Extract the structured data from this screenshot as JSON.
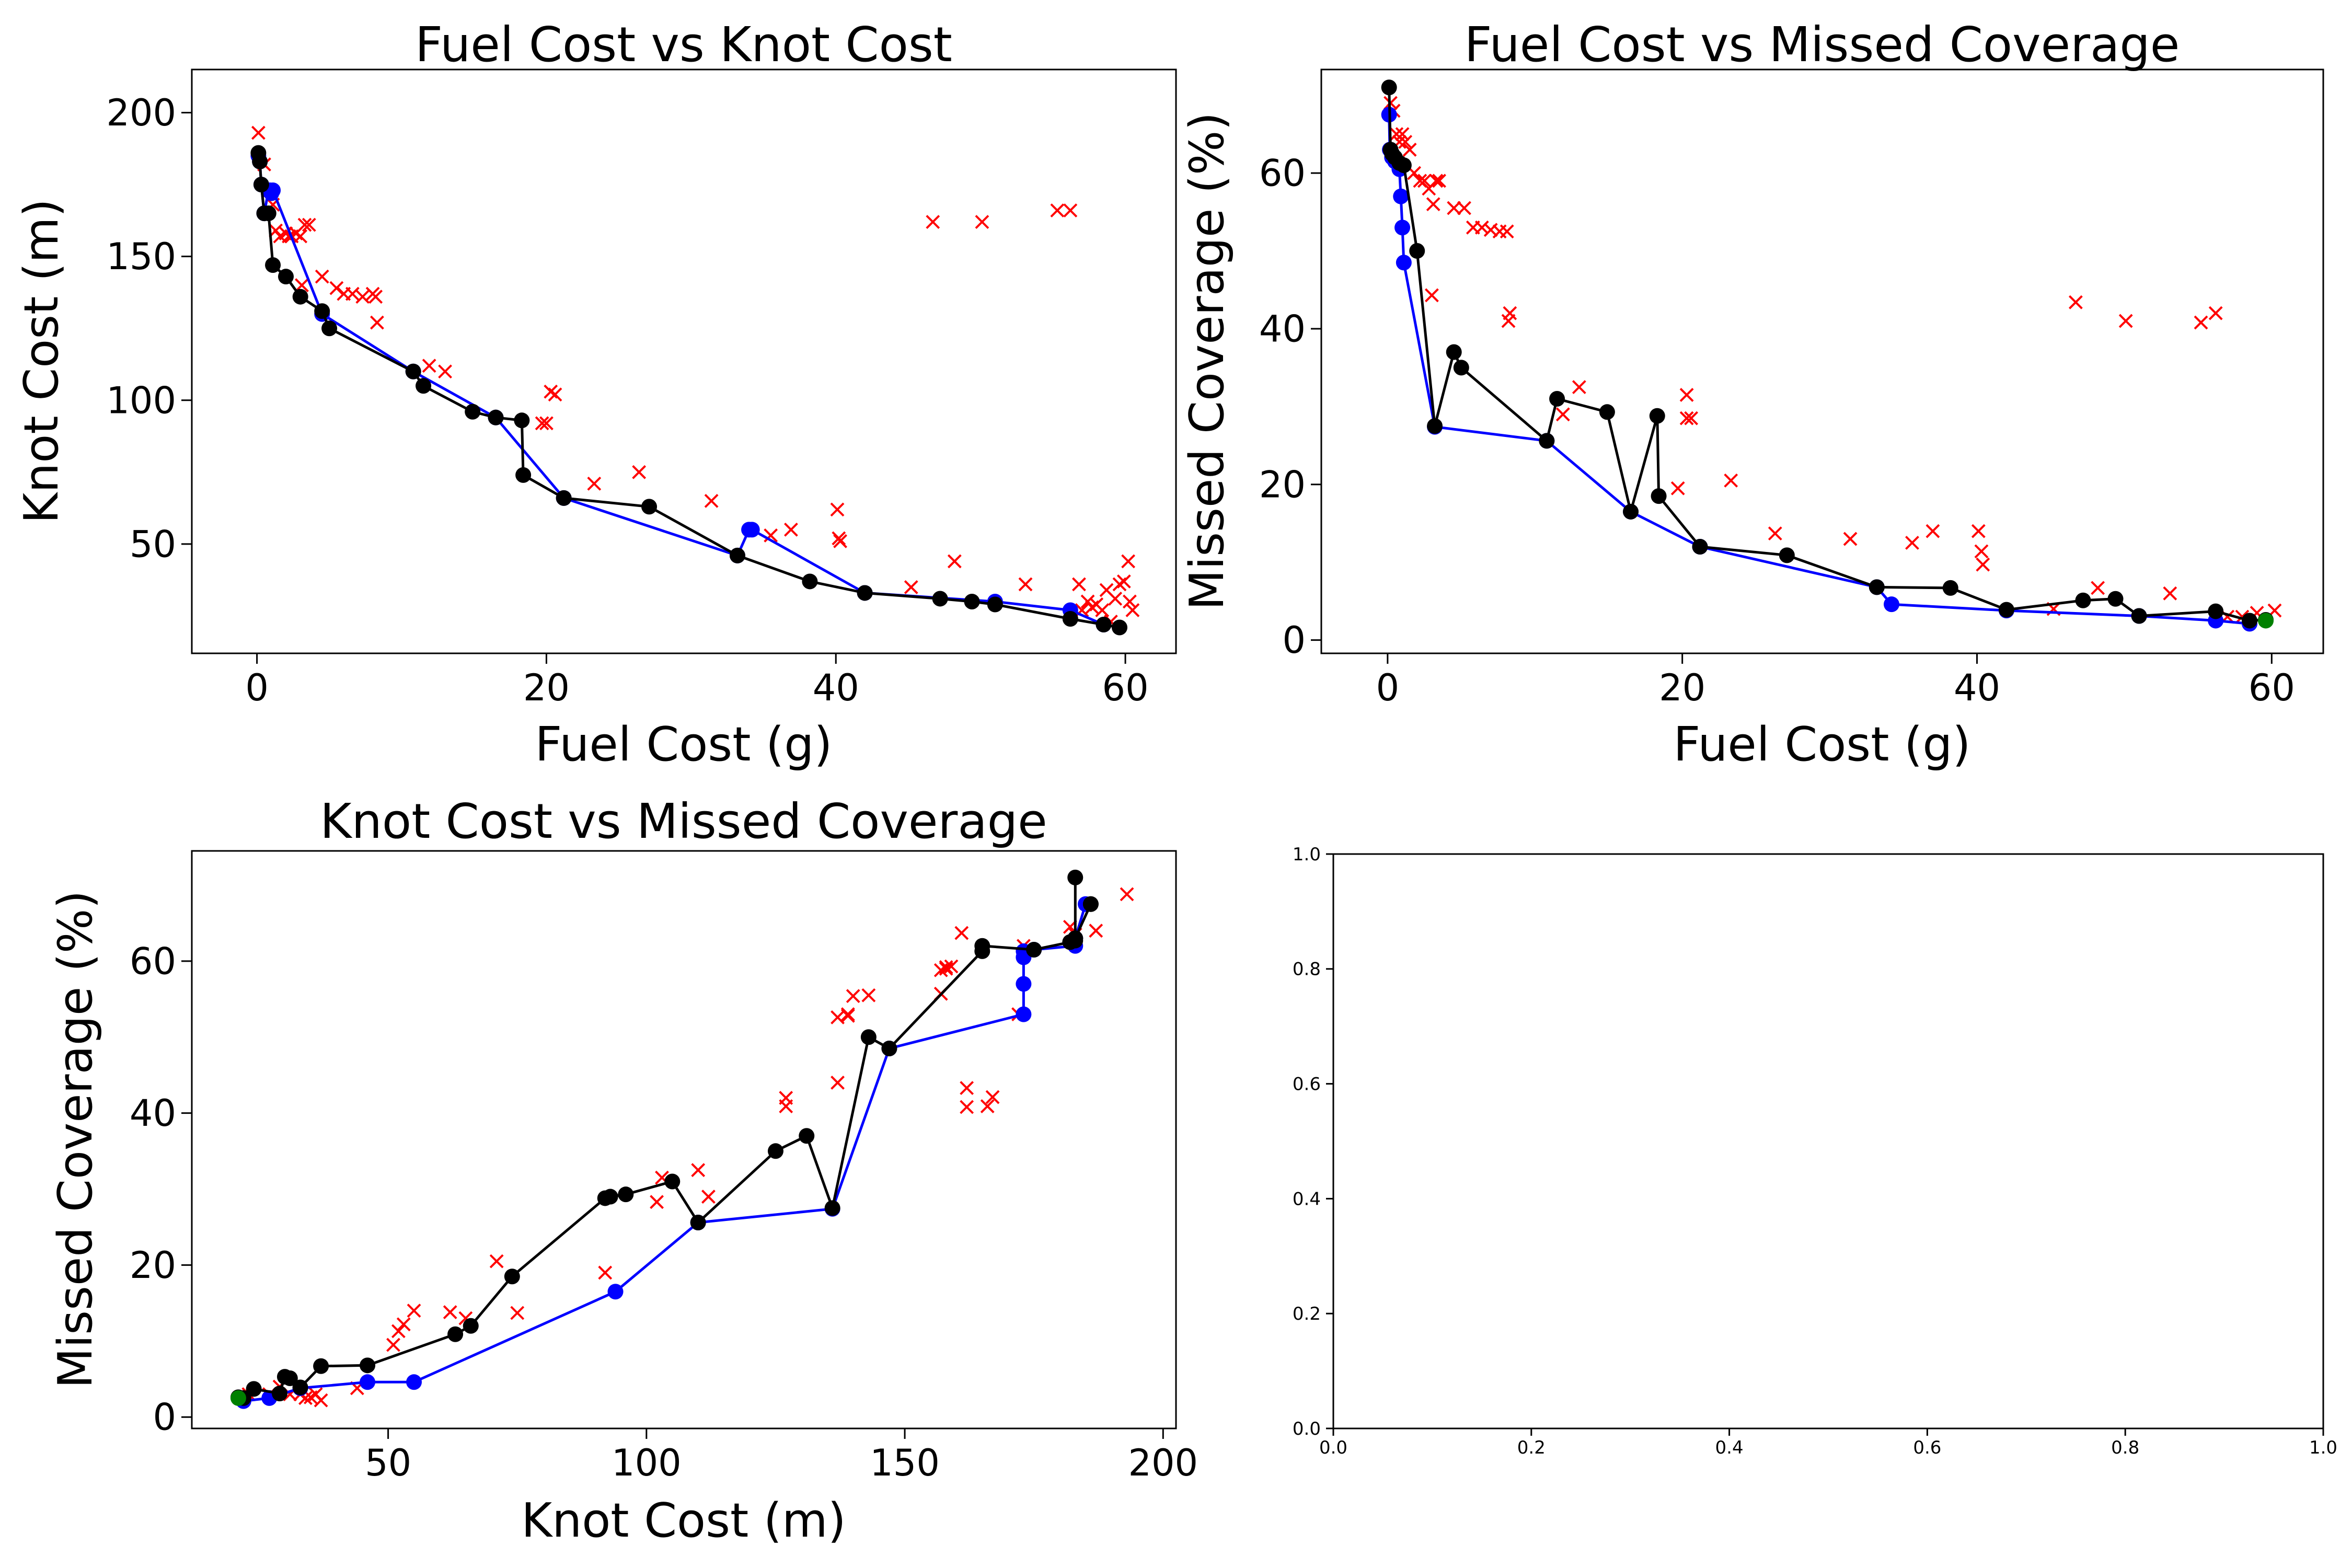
{
  "chart_data": [
    {
      "type": "scatter",
      "title": "Fuel Cost vs Knot Cost",
      "xlabel": "Fuel Cost (g)",
      "ylabel": "Knot Cost (m)",
      "xlim": [
        -4.5,
        63.5
      ],
      "ylim": [
        12,
        215
      ],
      "xticks": [
        0,
        20,
        40,
        60
      ],
      "yticks": [
        50,
        100,
        150,
        200
      ],
      "xtick_labels": [
        "0",
        "20",
        "40",
        "60"
      ],
      "ytick_labels": [
        "50",
        "100",
        "150",
        "200"
      ],
      "grid": false,
      "series": [
        {
          "marker": "x",
          "color": "#ff0000",
          "line": false,
          "x": [
            0.1,
            0.5,
            0.9,
            1.1,
            1.3,
            1.6,
            2.0,
            2.2,
            2.4,
            2.7,
            3.0,
            3.3,
            3.6,
            3.1,
            4.5,
            5.5,
            6.0,
            6.6,
            7.3,
            8.0,
            8.2,
            8.3,
            11.9,
            13.0,
            19.7,
            20.0,
            20.3,
            20.6,
            23.3,
            26.4,
            31.4,
            35.5,
            36.9,
            40.1,
            40.2,
            40.3,
            45.2,
            46.7,
            48.2,
            50.1,
            53.1,
            55.3,
            56.2,
            56.8,
            57.0,
            57.4,
            57.7,
            58.0,
            58.4,
            58.7,
            59.0,
            59.3,
            59.6,
            59.9,
            60.2,
            60.3,
            60.5
          ],
          "y": [
            193,
            182,
            173,
            168,
            159,
            157,
            158,
            157,
            157,
            158,
            157,
            161,
            161,
            140,
            143,
            139,
            137,
            137,
            136,
            137,
            136,
            127,
            112,
            110,
            92,
            92,
            103,
            102,
            71,
            75,
            65,
            53,
            55,
            62,
            52,
            51,
            35,
            162,
            44,
            162,
            36,
            166,
            166,
            36,
            27,
            30,
            28,
            29,
            27,
            34,
            23,
            31,
            36,
            37,
            44,
            30,
            27
          ]
        },
        {
          "marker": "o",
          "color": "#0000ff",
          "line": true,
          "x": [
            0.1,
            0.2,
            0.3,
            0.5,
            0.8,
            0.9,
            1.0,
            1.1,
            4.5,
            10.8,
            16.5,
            21.2,
            33.2,
            34.0,
            34.2,
            42.0,
            51.0,
            56.2,
            58.5
          ],
          "y": [
            185,
            183,
            175,
            165,
            173,
            173,
            172,
            173,
            130,
            110,
            94,
            66,
            46,
            55,
            55,
            33,
            30,
            27,
            22
          ]
        },
        {
          "marker": "o",
          "color": "#000000",
          "line": true,
          "x": [
            0.1,
            0.2,
            0.3,
            0.5,
            0.8,
            1.1,
            2.0,
            3.0,
            4.5,
            5.0,
            10.8,
            11.5,
            14.9,
            16.5,
            18.3,
            18.4,
            21.2,
            27.1,
            33.2,
            38.2,
            42.0,
            47.2,
            49.4,
            51.0,
            56.2,
            58.5,
            59.6
          ],
          "y": [
            186,
            183,
            175,
            165,
            165,
            147,
            143,
            136,
            131,
            125,
            110,
            105,
            96,
            94,
            93,
            74,
            66,
            63,
            46,
            37,
            33,
            31,
            30,
            29,
            24,
            22,
            21
          ]
        }
      ]
    },
    {
      "type": "scatter",
      "title": "Fuel Cost vs Missed Coverage",
      "xlabel": "Fuel Cost (g)",
      "ylabel": "Missed Coverage (%)",
      "xlim": [
        -4.5,
        63.5
      ],
      "ylim": [
        -1.7,
        73.3
      ],
      "xticks": [
        0,
        20,
        40,
        60
      ],
      "yticks": [
        0,
        20,
        40,
        60
      ],
      "xtick_labels": [
        "0",
        "20",
        "40",
        "60"
      ],
      "ytick_labels": [
        "0",
        "20",
        "40",
        "60"
      ],
      "grid": false,
      "series": [
        {
          "marker": "x",
          "color": "#ff0000",
          "line": false,
          "x": [
            0.2,
            0.4,
            0.6,
            0.8,
            1.0,
            1.2,
            1.5,
            1.8,
            2.2,
            2.5,
            2.8,
            3.1,
            3.3,
            3.5,
            4.5,
            5.2,
            5.8,
            6.4,
            7.0,
            7.6,
            8.1,
            8.3,
            8.2,
            3.0,
            11.9,
            13.0,
            19.7,
            20.3,
            20.6,
            20.3,
            23.3,
            26.3,
            31.4,
            35.6,
            37.0,
            40.1,
            40.3,
            40.4,
            45.2,
            46.7,
            48.2,
            50.1,
            53.1,
            55.2,
            56.2,
            57.0,
            58.0,
            59.0,
            60.2
          ],
          "y": [
            69,
            68,
            65,
            64,
            65,
            64,
            63,
            60,
            59,
            59,
            58,
            56,
            59,
            59,
            55.5,
            55.5,
            53,
            53,
            52.7,
            52.5,
            52.5,
            42,
            41,
            44.3,
            29,
            32.5,
            19.5,
            28.5,
            28.5,
            31.5,
            20.5,
            13.7,
            13,
            12.5,
            14,
            14,
            11.4,
            9.7,
            4,
            43.4,
            6.7,
            41,
            6,
            40.8,
            42,
            3,
            3,
            3.5,
            3.8
          ]
        },
        {
          "marker": "o",
          "color": "#0000ff",
          "line": true,
          "x": [
            0.1,
            0.15,
            0.3,
            0.5,
            0.8,
            0.9,
            1.0,
            1.1,
            3.2,
            10.8,
            16.5,
            21.2,
            33.2,
            34.2,
            42.0,
            51.0,
            56.2,
            58.5
          ],
          "y": [
            67.5,
            63,
            62,
            61.5,
            60.5,
            57,
            53,
            48.5,
            27.4,
            25.6,
            16.5,
            12,
            6.8,
            4.6,
            3.8,
            3.1,
            2.5,
            2.1
          ]
        },
        {
          "marker": "o",
          "color": "#000000",
          "line": true,
          "x": [
            0.1,
            0.2,
            0.3,
            0.5,
            0.8,
            1.1,
            2.0,
            3.2,
            4.5,
            5.0,
            10.8,
            11.5,
            14.9,
            16.5,
            18.3,
            18.4,
            21.2,
            27.1,
            33.2,
            38.2,
            42.0,
            47.2,
            49.4,
            51.0,
            56.2,
            58.5,
            59.6
          ],
          "y": [
            71,
            63,
            62.5,
            62,
            61.3,
            61,
            50,
            27.5,
            37,
            35,
            25.6,
            31,
            29.3,
            16.5,
            28.8,
            18.5,
            12,
            10.9,
            6.8,
            6.7,
            3.9,
            5.1,
            5.3,
            3.1,
            3.7,
            2.5,
            2.6
          ]
        },
        {
          "marker": "o",
          "color": "#008000",
          "line": false,
          "x": [
            59.6
          ],
          "y": [
            2.5
          ]
        }
      ]
    },
    {
      "type": "scatter",
      "title": "Knot Cost vs Missed Coverage",
      "xlabel": "Knot Cost (m)",
      "ylabel": "Missed Coverage (%)",
      "xlim": [
        12,
        202.5
      ],
      "ylim": [
        -1.5,
        74.5
      ],
      "xticks": [
        50,
        100,
        150,
        200
      ],
      "yticks": [
        0,
        20,
        40,
        60
      ],
      "xtick_labels": [
        "50",
        "100",
        "150",
        "200"
      ],
      "ytick_labels": [
        "0",
        "20",
        "40",
        "60"
      ],
      "grid": false,
      "series": [
        {
          "marker": "x",
          "color": "#ff0000",
          "line": false,
          "x": [
            23,
            27,
            29,
            31,
            33,
            34,
            35,
            36,
            37,
            44,
            51,
            52,
            53,
            55,
            62,
            65,
            71,
            75,
            92,
            102,
            103,
            110,
            112,
            127,
            127,
            137,
            137,
            139,
            139,
            140,
            143,
            157,
            157,
            158,
            158,
            159,
            161,
            162,
            162,
            166,
            167,
            172,
            173,
            182,
            183,
            187,
            193
          ],
          "y": [
            3,
            3,
            4,
            3,
            3,
            2.5,
            2.6,
            3,
            2.2,
            3.8,
            9.5,
            11.3,
            12.2,
            14,
            13.8,
            13,
            20.5,
            13.7,
            19,
            28.3,
            31.5,
            32.5,
            29,
            40.9,
            42,
            44,
            52.6,
            52.8,
            53,
            55.4,
            55.5,
            58.8,
            55.7,
            59,
            59.2,
            59.3,
            63.7,
            43.3,
            40.8,
            40.9,
            42.1,
            53,
            62,
            64.5,
            63.5,
            64,
            68.8
          ]
        },
        {
          "marker": "o",
          "color": "#0000ff",
          "line": true,
          "x": [
            22,
            27,
            33,
            46,
            55,
            94,
            110,
            136,
            147,
            173,
            173,
            173,
            173,
            175,
            183,
            183,
            185
          ],
          "y": [
            2.1,
            2.5,
            3.8,
            4.6,
            4.6,
            16.5,
            25.6,
            27.4,
            48.5,
            53,
            57,
            60.5,
            61.3,
            61.5,
            62,
            63,
            67.5
          ]
        },
        {
          "marker": "o",
          "color": "#000000",
          "line": true,
          "x": [
            21,
            22,
            24,
            29,
            30,
            31,
            33,
            37,
            46,
            63,
            66,
            74,
            92,
            93,
            96,
            105,
            110,
            125,
            131,
            136,
            143,
            147,
            165,
            165,
            175,
            182,
            183,
            183,
            183,
            183,
            186,
            186
          ],
          "y": [
            2.6,
            2.5,
            3.7,
            3.1,
            5.3,
            5.1,
            3.9,
            6.7,
            6.8,
            10.9,
            12,
            18.5,
            28.8,
            29,
            29.3,
            31,
            25.6,
            35,
            37,
            27.5,
            50,
            48.5,
            61.3,
            62,
            61.5,
            62.5,
            63,
            62.7,
            71,
            63,
            67.5,
            67.5
          ]
        },
        {
          "marker": "o",
          "color": "#008000",
          "line": false,
          "x": [
            21
          ],
          "y": [
            2.5
          ]
        }
      ]
    },
    {
      "type": "scatter",
      "title": "",
      "xlabel": "",
      "ylabel": "",
      "xlim": [
        0,
        1
      ],
      "ylim": [
        0,
        1
      ],
      "xticks": [
        0,
        0.2,
        0.4,
        0.6,
        0.8,
        1
      ],
      "yticks": [
        0,
        0.2,
        0.4,
        0.6,
        0.8,
        1
      ],
      "xtick_labels": [
        "0.0",
        "0.2",
        "0.4",
        "0.6",
        "0.8",
        "1.0"
      ],
      "ytick_labels": [
        "0.0",
        "0.2",
        "0.4",
        "0.6",
        "0.8",
        "1.0"
      ],
      "grid": false,
      "series": []
    }
  ]
}
